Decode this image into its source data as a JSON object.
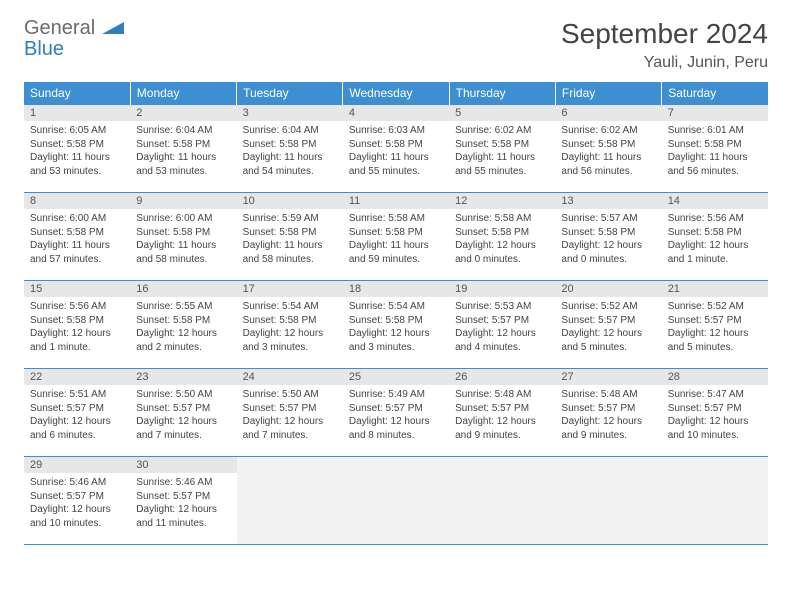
{
  "brand": {
    "word1": "General",
    "word2": "Blue"
  },
  "title": "September 2024",
  "location": "Yauli, Junin, Peru",
  "colors": {
    "header_bg": "#3d8fd1",
    "header_text": "#ffffff",
    "daynum_bg": "#e7e7e7",
    "border": "#3d8fd1",
    "empty_bg": "#f2f2f2",
    "body_text": "#444444"
  },
  "weekdays": [
    "Sunday",
    "Monday",
    "Tuesday",
    "Wednesday",
    "Thursday",
    "Friday",
    "Saturday"
  ],
  "weeks": [
    [
      {
        "n": "1",
        "sr": "6:05 AM",
        "ss": "5:58 PM",
        "dl": "11 hours and 53 minutes."
      },
      {
        "n": "2",
        "sr": "6:04 AM",
        "ss": "5:58 PM",
        "dl": "11 hours and 53 minutes."
      },
      {
        "n": "3",
        "sr": "6:04 AM",
        "ss": "5:58 PM",
        "dl": "11 hours and 54 minutes."
      },
      {
        "n": "4",
        "sr": "6:03 AM",
        "ss": "5:58 PM",
        "dl": "11 hours and 55 minutes."
      },
      {
        "n": "5",
        "sr": "6:02 AM",
        "ss": "5:58 PM",
        "dl": "11 hours and 55 minutes."
      },
      {
        "n": "6",
        "sr": "6:02 AM",
        "ss": "5:58 PM",
        "dl": "11 hours and 56 minutes."
      },
      {
        "n": "7",
        "sr": "6:01 AM",
        "ss": "5:58 PM",
        "dl": "11 hours and 56 minutes."
      }
    ],
    [
      {
        "n": "8",
        "sr": "6:00 AM",
        "ss": "5:58 PM",
        "dl": "11 hours and 57 minutes."
      },
      {
        "n": "9",
        "sr": "6:00 AM",
        "ss": "5:58 PM",
        "dl": "11 hours and 58 minutes."
      },
      {
        "n": "10",
        "sr": "5:59 AM",
        "ss": "5:58 PM",
        "dl": "11 hours and 58 minutes."
      },
      {
        "n": "11",
        "sr": "5:58 AM",
        "ss": "5:58 PM",
        "dl": "11 hours and 59 minutes."
      },
      {
        "n": "12",
        "sr": "5:58 AM",
        "ss": "5:58 PM",
        "dl": "12 hours and 0 minutes."
      },
      {
        "n": "13",
        "sr": "5:57 AM",
        "ss": "5:58 PM",
        "dl": "12 hours and 0 minutes."
      },
      {
        "n": "14",
        "sr": "5:56 AM",
        "ss": "5:58 PM",
        "dl": "12 hours and 1 minute."
      }
    ],
    [
      {
        "n": "15",
        "sr": "5:56 AM",
        "ss": "5:58 PM",
        "dl": "12 hours and 1 minute."
      },
      {
        "n": "16",
        "sr": "5:55 AM",
        "ss": "5:58 PM",
        "dl": "12 hours and 2 minutes."
      },
      {
        "n": "17",
        "sr": "5:54 AM",
        "ss": "5:58 PM",
        "dl": "12 hours and 3 minutes."
      },
      {
        "n": "18",
        "sr": "5:54 AM",
        "ss": "5:58 PM",
        "dl": "12 hours and 3 minutes."
      },
      {
        "n": "19",
        "sr": "5:53 AM",
        "ss": "5:57 PM",
        "dl": "12 hours and 4 minutes."
      },
      {
        "n": "20",
        "sr": "5:52 AM",
        "ss": "5:57 PM",
        "dl": "12 hours and 5 minutes."
      },
      {
        "n": "21",
        "sr": "5:52 AM",
        "ss": "5:57 PM",
        "dl": "12 hours and 5 minutes."
      }
    ],
    [
      {
        "n": "22",
        "sr": "5:51 AM",
        "ss": "5:57 PM",
        "dl": "12 hours and 6 minutes."
      },
      {
        "n": "23",
        "sr": "5:50 AM",
        "ss": "5:57 PM",
        "dl": "12 hours and 7 minutes."
      },
      {
        "n": "24",
        "sr": "5:50 AM",
        "ss": "5:57 PM",
        "dl": "12 hours and 7 minutes."
      },
      {
        "n": "25",
        "sr": "5:49 AM",
        "ss": "5:57 PM",
        "dl": "12 hours and 8 minutes."
      },
      {
        "n": "26",
        "sr": "5:48 AM",
        "ss": "5:57 PM",
        "dl": "12 hours and 9 minutes."
      },
      {
        "n": "27",
        "sr": "5:48 AM",
        "ss": "5:57 PM",
        "dl": "12 hours and 9 minutes."
      },
      {
        "n": "28",
        "sr": "5:47 AM",
        "ss": "5:57 PM",
        "dl": "12 hours and 10 minutes."
      }
    ],
    [
      {
        "n": "29",
        "sr": "5:46 AM",
        "ss": "5:57 PM",
        "dl": "12 hours and 10 minutes."
      },
      {
        "n": "30",
        "sr": "5:46 AM",
        "ss": "5:57 PM",
        "dl": "12 hours and 11 minutes."
      },
      null,
      null,
      null,
      null,
      null
    ]
  ],
  "labels": {
    "sunrise": "Sunrise:",
    "sunset": "Sunset:",
    "daylight": "Daylight:"
  }
}
